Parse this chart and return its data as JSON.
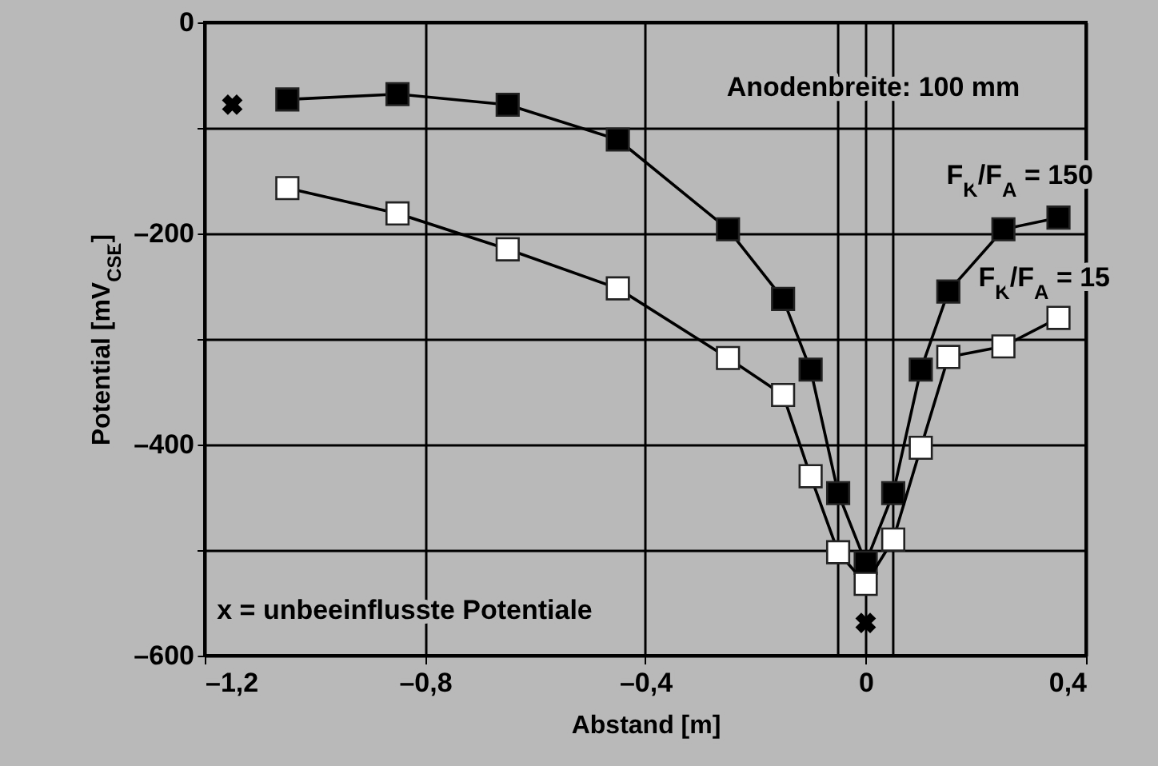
{
  "chart_data": {
    "type": "line",
    "xlabel": "Abstand [m]",
    "ylabel": "Potential [mV$_{CSE}$]",
    "annotations": [
      "Anodenbreite: 100 mm",
      "x = unbeeinflusste Potentiale"
    ],
    "series": [
      {
        "name": "F$_{K}$/F$_{A}$ = 150",
        "color": "#000000",
        "x": [
          -1.05,
          -0.85,
          -0.65,
          -0.45,
          -0.25,
          -0.15,
          -0.1,
          -0.05,
          0,
          0.05,
          0.1,
          0.15,
          0.25,
          0.35
        ],
        "values": [
          -73,
          -68,
          -78,
          -111,
          -196,
          -262,
          -329,
          -446,
          -512,
          -446,
          -329,
          -255,
          -196,
          -185
        ]
      },
      {
        "name": "F$_{K}$/F$_{A}$ = 15",
        "color": "#ffffff",
        "x": [
          -1.05,
          -0.85,
          -0.65,
          -0.45,
          -0.25,
          -0.15,
          -0.1,
          -0.05,
          0,
          0.05,
          0.1,
          0.15,
          0.25,
          0.35
        ],
        "values": [
          -157,
          -181,
          -215,
          -252,
          -318,
          -353,
          -430,
          -502,
          -532,
          -490,
          -403,
          -317,
          -307,
          -280
        ]
      },
      {
        "type": "scatter",
        "marker": "cross",
        "color": "#000000",
        "x": [
          -1.15,
          0
        ],
        "values": [
          -78,
          -569
        ]
      }
    ],
    "marker": "square",
    "ref_lines": [
      {
        "axis": "x",
        "value": -0.05
      },
      {
        "axis": "x",
        "value": 0.05
      }
    ],
    "xlim": [
      -1.2,
      0.4
    ],
    "xticks": [
      {
        "value": -1.2,
        "label": "–1,2"
      },
      {
        "value": -0.8,
        "label": "–0,8"
      },
      {
        "value": -0.4,
        "label": "–0,4"
      },
      0,
      {
        "value": 0.4,
        "label": "0,4"
      }
    ],
    "ylim": [
      -600,
      0
    ],
    "yticks": [
      {
        "value": -600,
        "label": "–600"
      },
      {
        "value": -500,
        "label": null
      },
      {
        "value": -400,
        "label": "–400"
      },
      {
        "value": -300,
        "label": null
      },
      {
        "value": -200,
        "label": "–200"
      },
      {
        "value": -100,
        "label": null
      },
      0
    ],
    "grid": true
  }
}
